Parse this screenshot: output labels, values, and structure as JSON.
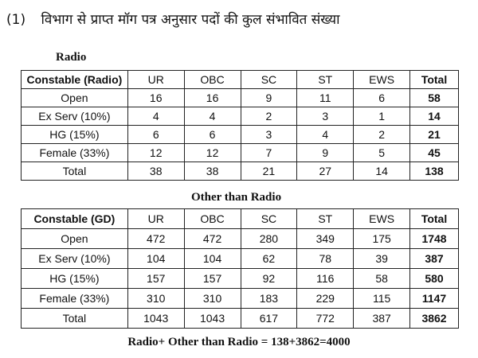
{
  "heading": {
    "number": "(1)",
    "text": "विभाग से प्राप्त मॉग पत्र अनुसार पदों की कुल संभावित संख्या"
  },
  "radio": {
    "caption": "Radio",
    "headers": [
      "Constable (Radio)",
      "UR",
      "OBC",
      "SC",
      "ST",
      "EWS",
      "Total"
    ],
    "rows": [
      [
        "Open",
        "16",
        "16",
        "9",
        "11",
        "6",
        "58"
      ],
      [
        "Ex Serv (10%)",
        "4",
        "4",
        "2",
        "3",
        "1",
        "14"
      ],
      [
        "HG (15%)",
        "6",
        "6",
        "3",
        "4",
        "2",
        "21"
      ],
      [
        "Female  (33%)",
        "12",
        "12",
        "7",
        "9",
        "5",
        "45"
      ],
      [
        "Total",
        "38",
        "38",
        "21",
        "27",
        "14",
        "138"
      ]
    ]
  },
  "other": {
    "caption": "Other than Radio",
    "headers": [
      "Constable (GD)",
      "UR",
      "OBC",
      "SC",
      "ST",
      "EWS",
      "Total"
    ],
    "rows": [
      [
        "Open",
        "472",
        "472",
        "280",
        "349",
        "175",
        "1748"
      ],
      [
        "Ex Serv (10%)",
        "104",
        "104",
        "62",
        "78",
        "39",
        "387"
      ],
      [
        "HG (15%)",
        "157",
        "157",
        "92",
        "116",
        "58",
        "580"
      ],
      [
        "Female  (33%)",
        "310",
        "310",
        "183",
        "229",
        "115",
        "1147"
      ],
      [
        "Total",
        "1043",
        "1043",
        "617",
        "772",
        "387",
        "3862"
      ]
    ]
  },
  "footer": "Radio+ Other than Radio = 138+3862=4000"
}
